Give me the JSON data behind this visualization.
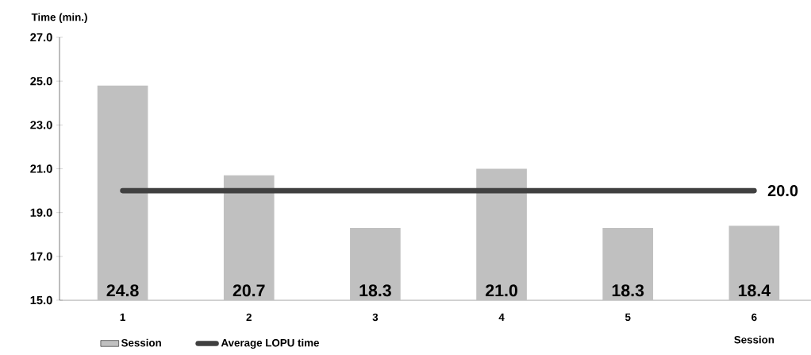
{
  "chart_data": {
    "type": "bar",
    "xlabel": "Session",
    "ylabel": "Time (min.)",
    "categories": [
      "1",
      "2",
      "3",
      "4",
      "5",
      "6"
    ],
    "series": [
      {
        "name": "Session",
        "color": "#c0c0c0",
        "values": [
          24.8,
          20.7,
          18.3,
          21.0,
          18.3,
          18.4
        ],
        "value_labels": [
          "24.8",
          "20.7",
          "18.3",
          "21.0",
          "18.3",
          "18.4"
        ]
      },
      {
        "name": "Average LOPU time",
        "type": "line",
        "color": "#404040",
        "values": [
          20.0,
          20.0,
          20.0,
          20.0,
          20.0,
          20.0
        ],
        "value_labels": [
          null,
          null,
          null,
          null,
          null,
          "20.0"
        ]
      }
    ],
    "ylim": [
      15,
      27
    ],
    "yticks": [
      {
        "value": 15,
        "label": "15.0"
      },
      {
        "value": 17,
        "label": "17.0"
      },
      {
        "value": 19,
        "label": "19.0"
      },
      {
        "value": 21,
        "label": "21.0"
      },
      {
        "value": 23,
        "label": "23.0"
      },
      {
        "value": 25,
        "label": "25.0"
      },
      {
        "value": 27,
        "label": "27.0"
      }
    ],
    "grid": false,
    "legend": "bottom left",
    "marker": "none",
    "line_style": "solid"
  }
}
